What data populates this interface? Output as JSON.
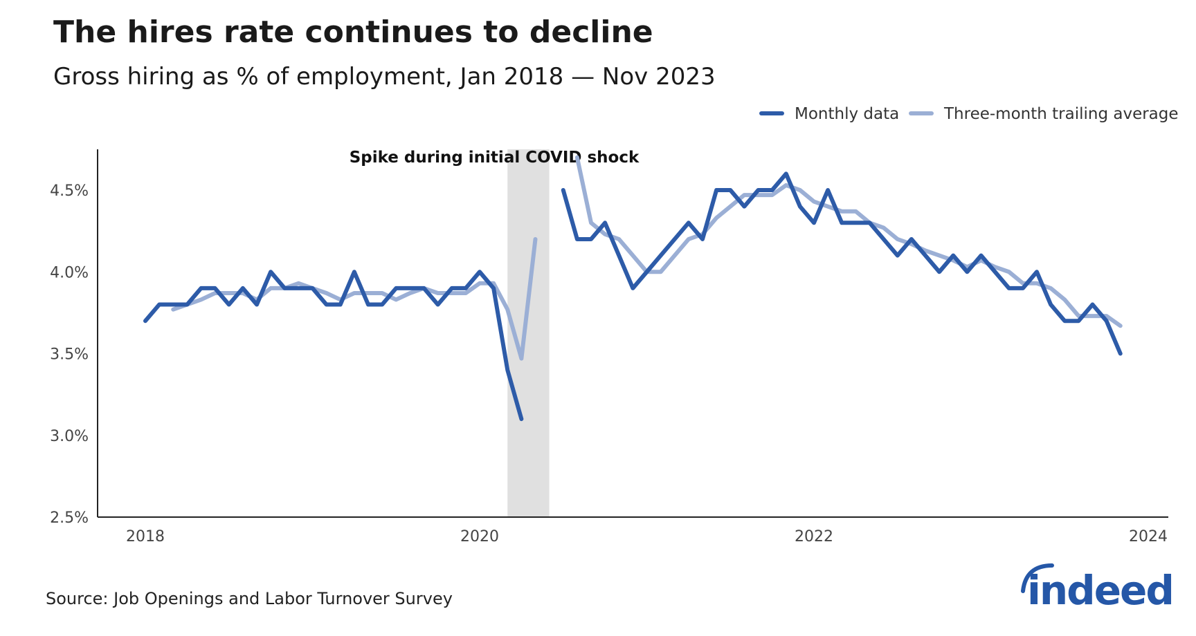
{
  "chart_data": {
    "type": "line",
    "title": "The hires rate continues to decline",
    "subtitle": "Gross hiring as % of employment, Jan 2018 — Nov 2023",
    "source": "Source: Job Openings and Labor Turnover Survey",
    "logo_text": "indeed",
    "annotation": {
      "text": "Spike during initial COVID shock",
      "shaded_from": "2020-03",
      "shaded_to": "2020-06"
    },
    "xlabel": "",
    "ylabel": "",
    "x_ticks": [
      "2018",
      "2020",
      "2022",
      "2024"
    ],
    "y_ticks": [
      "2.5%",
      "3.0%",
      "3.5%",
      "4.0%",
      "4.5%"
    ],
    "ylim": [
      2.5,
      4.75
    ],
    "xlim": [
      "2017-09",
      "2024-02"
    ],
    "grid": false,
    "legend_position": "top-right",
    "colors": {
      "monthly": "#2d5ba8",
      "average": "#9bafd5",
      "shade": "#e0e0e0"
    },
    "start_month": "2018-01",
    "series": [
      {
        "name": "Monthly data",
        "values": [
          3.7,
          3.8,
          3.8,
          3.8,
          3.9,
          3.9,
          3.8,
          3.9,
          3.8,
          4.0,
          3.9,
          3.9,
          3.9,
          3.8,
          3.8,
          4.0,
          3.8,
          3.8,
          3.9,
          3.9,
          3.9,
          3.8,
          3.9,
          3.9,
          4.0,
          3.9,
          3.4,
          3.1,
          null,
          null,
          4.5,
          4.2,
          4.2,
          4.3,
          4.1,
          3.9,
          4.0,
          4.1,
          4.2,
          4.3,
          4.2,
          4.5,
          4.5,
          4.4,
          4.5,
          4.5,
          4.6,
          4.4,
          4.3,
          4.5,
          4.3,
          4.3,
          4.3,
          4.2,
          4.1,
          4.2,
          4.1,
          4.0,
          4.1,
          4.0,
          4.1,
          4.0,
          3.9,
          3.9,
          4.0,
          3.8,
          3.7,
          3.7,
          3.8,
          3.7,
          3.5
        ]
      },
      {
        "name": "Three-month trailing average",
        "values": [
          null,
          null,
          3.77,
          3.8,
          3.83,
          3.87,
          3.87,
          3.87,
          3.83,
          3.9,
          3.9,
          3.93,
          3.9,
          3.87,
          3.83,
          3.87,
          3.87,
          3.87,
          3.83,
          3.87,
          3.9,
          3.87,
          3.87,
          3.87,
          3.93,
          3.93,
          3.77,
          3.47,
          4.2,
          null,
          null,
          4.7,
          4.3,
          4.23,
          4.2,
          4.1,
          4.0,
          4.0,
          4.1,
          4.2,
          4.23,
          4.33,
          4.4,
          4.47,
          4.47,
          4.47,
          4.53,
          4.5,
          4.43,
          4.4,
          4.37,
          4.37,
          4.3,
          4.27,
          4.2,
          4.17,
          4.13,
          4.1,
          4.07,
          4.03,
          4.07,
          4.03,
          4.0,
          3.93,
          3.93,
          3.9,
          3.83,
          3.73,
          3.73,
          3.73,
          3.67
        ]
      }
    ]
  }
}
